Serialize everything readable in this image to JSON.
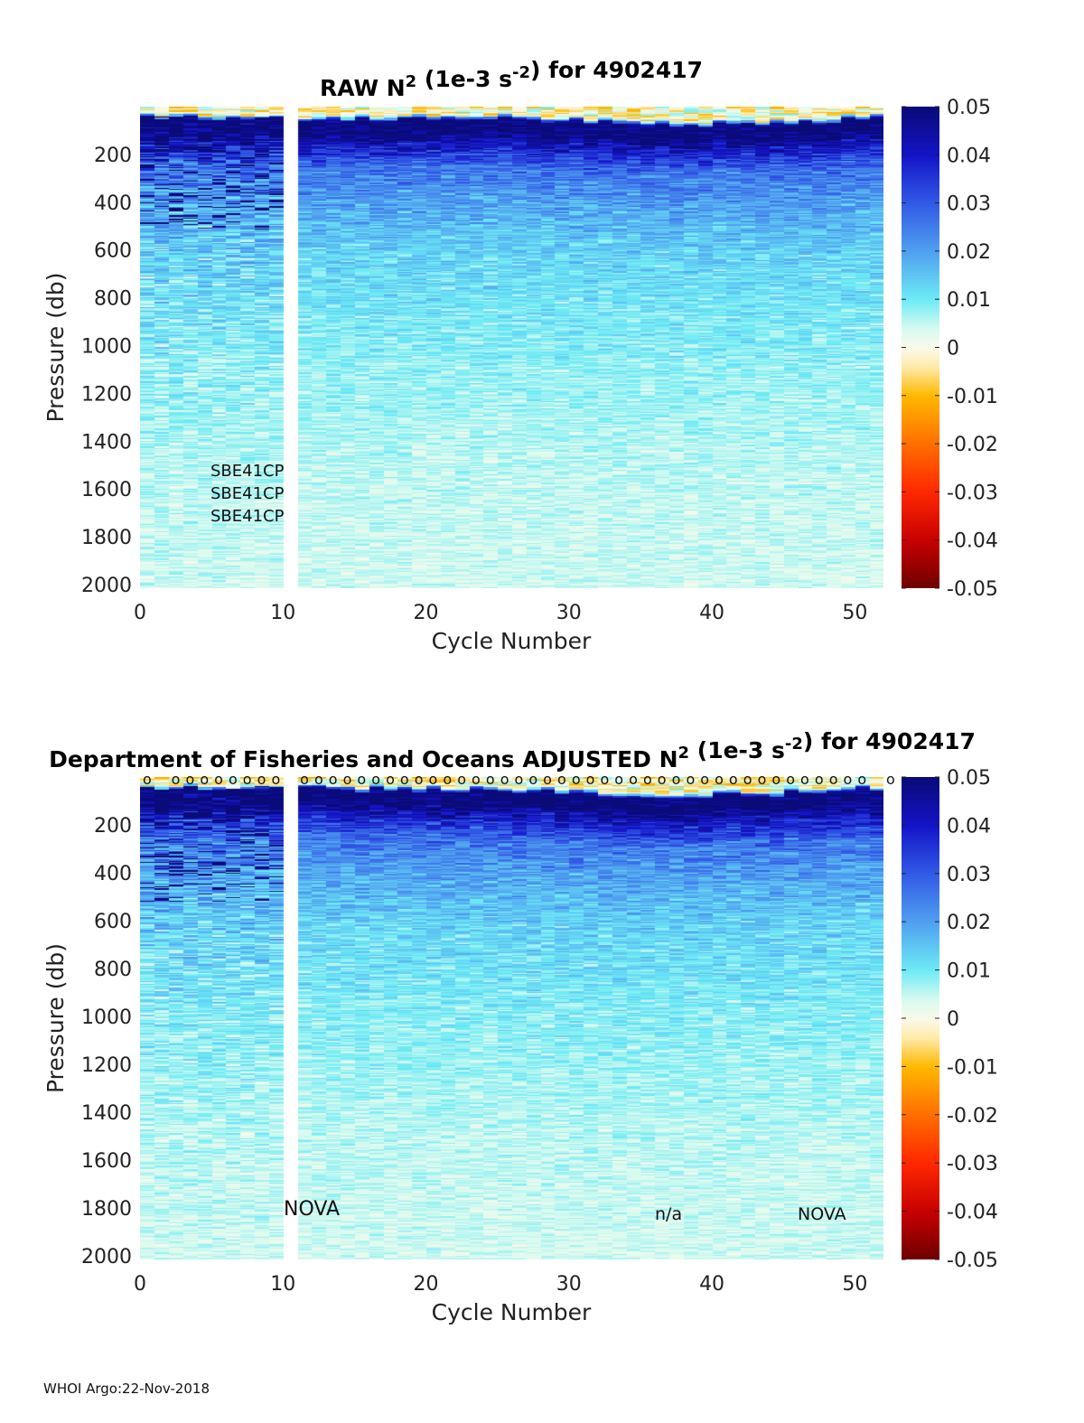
{
  "chart_data": [
    {
      "type": "heatmap",
      "title": "RAW N",
      "title_sup1": "2",
      "title_mid": " (1e-3 s",
      "title_sup2": "-2",
      "title_end": ") for 4902417",
      "xlabel": "Cycle Number",
      "ylabel": "Pressure (db)",
      "xlim": [
        0,
        52
      ],
      "ylim": [
        0,
        2000
      ],
      "xticks": [
        "0",
        "10",
        "20",
        "30",
        "40",
        "50"
      ],
      "yticks": [
        "200",
        "400",
        "600",
        "800",
        "1000",
        "1200",
        "1400",
        "1600",
        "1800",
        "2000"
      ],
      "colorbar": {
        "range": [
          -0.05,
          0.05
        ],
        "ticks": [
          "0.05",
          "0.04",
          "0.03",
          "0.02",
          "0.01",
          "0",
          "-0.01",
          "-0.02",
          "-0.03",
          "-0.04",
          "-0.05"
        ]
      },
      "missing_cycles": [
        10
      ],
      "annotations": [
        {
          "text": "SBE41CP"
        },
        {
          "text": "SBE41CP"
        },
        {
          "text": "SBE41CP"
        }
      ],
      "profile": {
        "pressure": [
          0,
          30,
          50,
          100,
          150,
          250,
          400,
          600,
          1000,
          1500,
          2000
        ],
        "n2_typical": [
          0,
          -0.005,
          0.05,
          0.05,
          0.04,
          0.025,
          0.018,
          0.012,
          0.008,
          0.005,
          0.004
        ]
      }
    },
    {
      "type": "heatmap",
      "title": "Department of Fisheries and Oceans  ADJUSTED N",
      "title_sup1": "2",
      "title_mid": " (1e-3 s",
      "title_sup2": "-2",
      "title_end": ") for 4902417",
      "xlabel": "Cycle Number",
      "ylabel": "Pressure (db)",
      "xlim": [
        0,
        52
      ],
      "ylim": [
        0,
        2000
      ],
      "xticks": [
        "0",
        "10",
        "20",
        "30",
        "40",
        "50"
      ],
      "yticks": [
        "200",
        "400",
        "600",
        "800",
        "1000",
        "1200",
        "1400",
        "1600",
        "1800",
        "2000"
      ],
      "colorbar": {
        "range": [
          -0.05,
          0.05
        ],
        "ticks": [
          "0.05",
          "0.04",
          "0.03",
          "0.02",
          "0.01",
          "0",
          "-0.01",
          "-0.02",
          "-0.03",
          "-0.04",
          "-0.05"
        ]
      },
      "missing_cycles": [
        10
      ],
      "qc_marker": "o",
      "annotations": [
        {
          "text": "NOVA"
        },
        {
          "text": "n/a"
        },
        {
          "text": "NOVA"
        }
      ],
      "profile": {
        "pressure": [
          0,
          30,
          50,
          100,
          150,
          250,
          400,
          600,
          1000,
          1500,
          2000
        ],
        "n2_typical": [
          0,
          -0.005,
          0.05,
          0.05,
          0.04,
          0.025,
          0.018,
          0.012,
          0.008,
          0.005,
          0.004
        ]
      }
    }
  ],
  "footer": "WHOI Argo:22-Nov-2018"
}
